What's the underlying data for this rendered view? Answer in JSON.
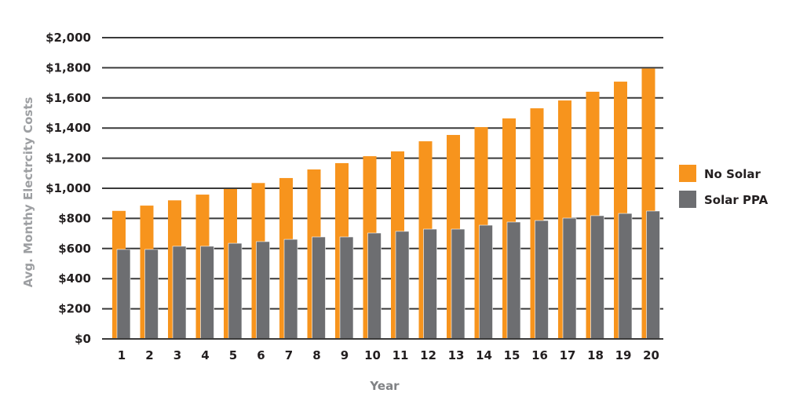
{
  "chart_data": {
    "type": "bar",
    "title": "",
    "xlabel": "Year",
    "ylabel": "Avg. Monthy Electrcity Costs",
    "ylim": [
      0,
      2000
    ],
    "yticks": [
      "$0",
      "$200",
      "$400",
      "$600",
      "$800",
      "$1,000",
      "$1,200",
      "$1,400",
      "$1,600",
      "$1,800",
      "$2,000"
    ],
    "ytick_values": [
      0,
      200,
      400,
      600,
      800,
      1000,
      1200,
      1400,
      1600,
      1800,
      2000
    ],
    "categories": [
      "1",
      "2",
      "3",
      "4",
      "5",
      "6",
      "7",
      "8",
      "9",
      "10",
      "11",
      "12",
      "13",
      "14",
      "15",
      "16",
      "17",
      "18",
      "19",
      "20"
    ],
    "grid": true,
    "legend_position": "right",
    "series": [
      {
        "name": "No Solar",
        "color": "#f7941d",
        "values": [
          850,
          885,
          920,
          958,
          995,
          1035,
          1068,
          1125,
          1167,
          1213,
          1245,
          1312,
          1354,
          1406,
          1464,
          1531,
          1583,
          1641,
          1708,
          1795
        ]
      },
      {
        "name": "Solar PPA",
        "color": "#6d6e71",
        "values": [
          594,
          594,
          615,
          615,
          635,
          646,
          661,
          677,
          677,
          703,
          714,
          729,
          729,
          755,
          776,
          786,
          802,
          818,
          833,
          849
        ]
      }
    ]
  }
}
